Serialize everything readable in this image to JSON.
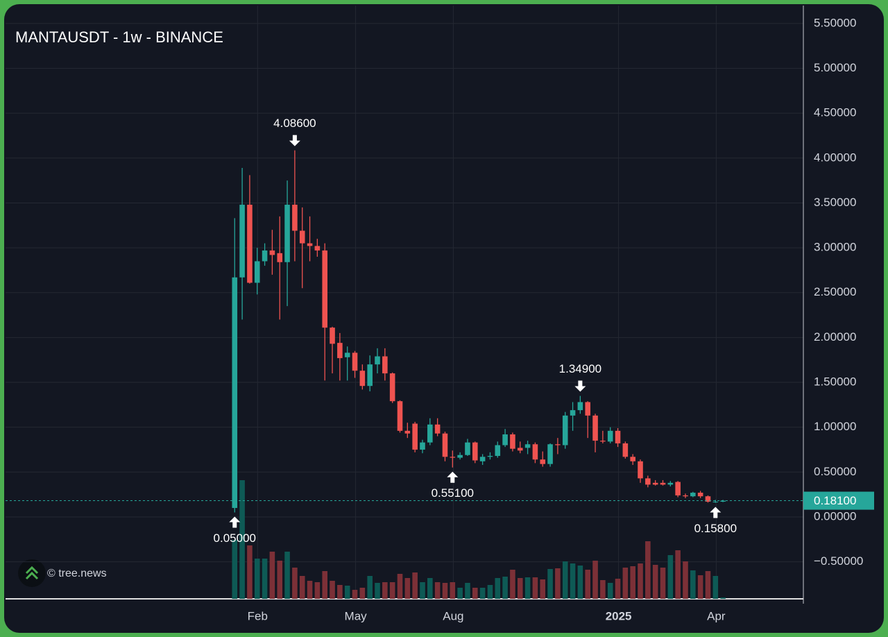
{
  "chart_data": {
    "type": "candlestick",
    "title": "MANTAUSDT - 1w - BINANCE",
    "watermark": "© tree.news",
    "x": [
      0,
      1,
      2,
      3,
      4,
      5,
      6,
      7,
      8,
      9,
      10,
      11,
      12,
      13,
      14,
      15,
      16,
      17,
      18,
      19,
      20,
      21,
      22,
      23,
      24,
      25,
      26,
      27,
      28,
      29,
      30,
      31,
      32,
      33,
      34,
      35,
      36,
      37,
      38,
      39,
      40,
      41,
      42,
      43,
      44,
      45,
      46,
      47,
      48,
      49,
      50,
      51,
      52,
      53,
      54,
      55,
      56,
      57,
      58,
      59,
      60,
      61,
      62,
      63,
      64,
      65
    ],
    "open": [
      0.1,
      2.67,
      3.48,
      2.61,
      2.85,
      2.97,
      2.94,
      2.84,
      3.48,
      3.19,
      3.05,
      3.02,
      2.97,
      2.11,
      1.94,
      1.78,
      1.83,
      1.63,
      1.46,
      1.7,
      1.79,
      1.6,
      1.29,
      0.96,
      1.04,
      0.75,
      0.83,
      1.03,
      0.93,
      0.67,
      0.66,
      0.69,
      0.83,
      0.62,
      0.67,
      0.68,
      0.8,
      0.92,
      0.77,
      0.77,
      0.81,
      0.64,
      0.59,
      0.81,
      0.8,
      1.13,
      1.19,
      1.28,
      1.13,
      0.85,
      0.84,
      0.96,
      0.82,
      0.67,
      0.62,
      0.43,
      0.38,
      0.38,
      0.36,
      0.39,
      0.24,
      0.23,
      0.27,
      0.23,
      0.17,
      0.17
    ],
    "high": [
      3.33,
      3.89,
      3.81,
      3.0,
      3.05,
      3.2,
      3.35,
      3.75,
      4.086,
      3.45,
      3.35,
      3.1,
      3.05,
      2.12,
      2.05,
      1.9,
      1.85,
      1.7,
      1.8,
      1.88,
      1.88,
      1.61,
      1.3,
      1.05,
      1.06,
      0.86,
      1.1,
      1.1,
      0.95,
      0.74,
      0.72,
      0.87,
      0.84,
      0.7,
      0.72,
      0.84,
      0.98,
      0.94,
      0.84,
      0.85,
      0.83,
      0.73,
      0.82,
      0.88,
      1.17,
      1.28,
      1.349,
      1.29,
      1.15,
      0.96,
      1.0,
      0.99,
      0.84,
      0.7,
      0.64,
      0.46,
      0.41,
      0.41,
      0.4,
      0.4,
      0.26,
      0.28,
      0.29,
      0.24,
      0.19,
      0.19
    ],
    "low": [
      0.05,
      2.2,
      2.6,
      2.48,
      2.8,
      2.7,
      2.2,
      2.35,
      2.85,
      2.55,
      2.85,
      2.9,
      1.52,
      1.6,
      1.52,
      1.52,
      1.55,
      1.42,
      1.4,
      1.6,
      1.52,
      1.27,
      0.94,
      0.88,
      0.72,
      0.71,
      0.8,
      0.9,
      0.62,
      0.551,
      0.64,
      0.68,
      0.6,
      0.58,
      0.64,
      0.66,
      0.78,
      0.73,
      0.71,
      0.7,
      0.6,
      0.56,
      0.56,
      0.7,
      0.76,
      0.96,
      1.15,
      0.88,
      0.72,
      0.82,
      0.82,
      0.78,
      0.65,
      0.58,
      0.38,
      0.33,
      0.35,
      0.35,
      0.34,
      0.22,
      0.21,
      0.22,
      0.21,
      0.16,
      0.158,
      0.165
    ],
    "close": [
      2.67,
      3.48,
      2.61,
      2.85,
      2.97,
      2.92,
      2.84,
      3.48,
      3.19,
      3.05,
      3.02,
      2.97,
      2.11,
      1.93,
      1.77,
      1.83,
      1.63,
      1.46,
      1.7,
      1.79,
      1.6,
      1.29,
      0.96,
      0.93,
      0.75,
      0.83,
      1.03,
      0.93,
      0.67,
      0.66,
      0.69,
      0.83,
      0.63,
      0.67,
      0.68,
      0.8,
      0.92,
      0.76,
      0.74,
      0.81,
      0.64,
      0.59,
      0.81,
      0.8,
      1.13,
      1.19,
      1.28,
      1.13,
      0.85,
      0.84,
      0.96,
      0.82,
      0.67,
      0.62,
      0.43,
      0.36,
      0.36,
      0.36,
      0.38,
      0.24,
      0.23,
      0.27,
      0.23,
      0.17,
      0.17,
      0.181
    ],
    "volume": [
      85,
      171,
      77,
      58,
      58,
      68,
      55,
      68,
      45,
      33,
      26,
      24,
      40,
      26,
      20,
      19,
      13,
      16,
      33,
      23,
      24,
      24,
      36,
      30,
      38,
      24,
      30,
      24,
      23,
      24,
      16,
      23,
      16,
      16,
      20,
      30,
      32,
      42,
      30,
      31,
      31,
      28,
      43,
      44,
      54,
      51,
      48,
      42,
      55,
      27,
      23,
      29,
      45,
      47,
      51,
      83,
      49,
      45,
      63,
      70,
      54,
      41,
      34,
      40,
      33,
      2
    ],
    "vlim": [
      0,
      180
    ],
    "up_color": "#26a69a",
    "down_color": "#ef5350",
    "up_volume_color": "#0e5a55",
    "down_volume_color": "#7c3037",
    "xlim": [
      -30.5,
      75.7
    ],
    "xticks": [
      {
        "value": 3.05,
        "label": "Feb"
      },
      {
        "value": 16.1,
        "label": "May"
      },
      {
        "value": 29.1,
        "label": "Aug"
      },
      {
        "value": 51.1,
        "label": "2025"
      },
      {
        "value": 64.1,
        "label": "Apr"
      }
    ],
    "ylim": [
      -0.913,
      5.7
    ],
    "yticks": [
      {
        "value": -0.5,
        "label": "−0.50000"
      },
      {
        "value": 0,
        "label": "0.00000"
      },
      {
        "value": 0.5,
        "label": "0.50000"
      },
      {
        "value": 1,
        "label": "1.00000"
      },
      {
        "value": 1.5,
        "label": "1.50000"
      },
      {
        "value": 2,
        "label": "2.00000"
      },
      {
        "value": 2.5,
        "label": "2.50000"
      },
      {
        "value": 3,
        "label": "3.00000"
      },
      {
        "value": 3.5,
        "label": "3.50000"
      },
      {
        "value": 4,
        "label": "4.00000"
      },
      {
        "value": 4.5,
        "label": "4.50000"
      },
      {
        "value": 5,
        "label": "5.00000"
      },
      {
        "value": 5.5,
        "label": "5.50000"
      }
    ],
    "grid": true,
    "annotations": [
      {
        "x": 8,
        "value": 4.086,
        "label": "4.08600",
        "side": "above"
      },
      {
        "x": 0,
        "value": 0.05,
        "label": "0.05000",
        "side": "below"
      },
      {
        "x": 29,
        "value": 0.551,
        "label": "0.55100",
        "side": "below"
      },
      {
        "x": 46,
        "value": 1.349,
        "label": "1.34900",
        "side": "above"
      },
      {
        "x": 64,
        "value": 0.158,
        "label": "0.15800",
        "side": "below"
      }
    ],
    "last_price": {
      "value": 0.181,
      "label": "0.18100"
    }
  }
}
